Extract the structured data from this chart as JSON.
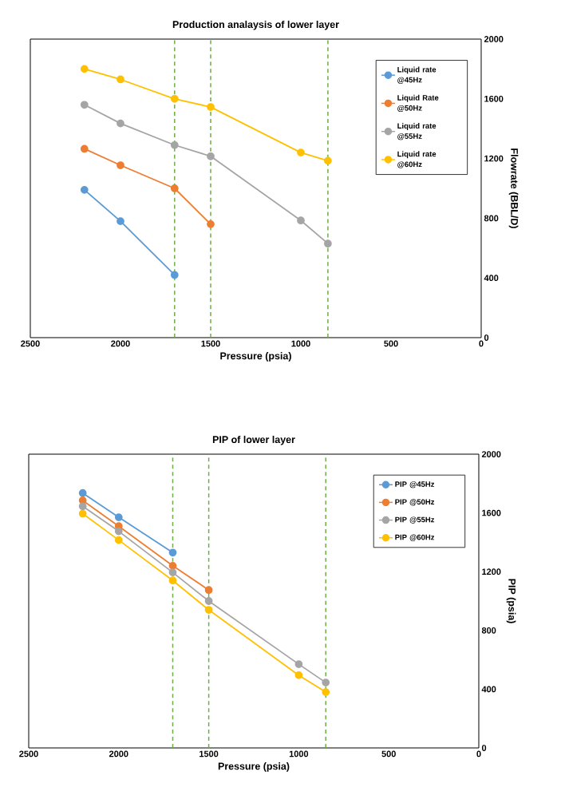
{
  "chart_data": [
    {
      "type": "line",
      "title": "Production analaysis of lower layer",
      "xlabel": "Pressure (psia)",
      "ylabel": "Flowrate (BBL/D)",
      "xlim": [
        2500,
        0
      ],
      "xticks": [
        2500,
        2000,
        1500,
        1000,
        500,
        0
      ],
      "ylim": [
        0,
        2000
      ],
      "yticks": [
        0,
        400,
        800,
        1200,
        1600,
        2000
      ],
      "legend": "top right",
      "marker": "circle",
      "series": [
        {
          "name": "Liquid rate @45Hz",
          "color": "#5b9bd5",
          "x": [
            2200,
            2000,
            1700
          ],
          "values": [
            990,
            780,
            420
          ]
        },
        {
          "name": "Liquid Rate @50Hz",
          "color": "#ed7d31",
          "x": [
            2200,
            2000,
            1700,
            1500
          ],
          "values": [
            1265,
            1155,
            1000,
            760
          ]
        },
        {
          "name": "Liquid rate @55Hz",
          "color": "#a5a5a5",
          "x": [
            2200,
            2000,
            1700,
            1500,
            1000,
            850
          ],
          "values": [
            1560,
            1435,
            1290,
            1215,
            785,
            630
          ]
        },
        {
          "name": "Liquid rate @60Hz",
          "color": "#ffc000",
          "x": [
            2200,
            2000,
            1700,
            1500,
            1000,
            850
          ],
          "values": [
            1800,
            1730,
            1600,
            1545,
            1240,
            1185
          ]
        }
      ],
      "ref_lines": [
        {
          "axis": "x",
          "value": 1700,
          "color": "#70ad47",
          "line_style": "dashed"
        },
        {
          "axis": "x",
          "value": 1500,
          "color": "#70ad47",
          "line_style": "dashed"
        },
        {
          "axis": "x",
          "value": 850,
          "color": "#70ad47",
          "line_style": "dashed"
        }
      ]
    },
    {
      "type": "line",
      "title": "PIP of lower layer",
      "xlabel": "Pressure (psia)",
      "ylabel": "PIP (psia)",
      "xlim": [
        2500,
        0
      ],
      "xticks": [
        2500,
        2000,
        1500,
        1000,
        500,
        0
      ],
      "ylim": [
        0,
        2000
      ],
      "yticks": [
        0,
        400,
        800,
        1200,
        1600,
        2000
      ],
      "legend": "top right",
      "marker": "circle",
      "series": [
        {
          "name": "PIP @45Hz",
          "color": "#5b9bd5",
          "x": [
            2200,
            2000,
            1700
          ],
          "values": [
            1735,
            1570,
            1330
          ]
        },
        {
          "name": "PIP @50Hz",
          "color": "#ed7d31",
          "x": [
            2200,
            2000,
            1700,
            1500
          ],
          "values": [
            1685,
            1510,
            1240,
            1075
          ]
        },
        {
          "name": "PIP @55Hz",
          "color": "#a5a5a5",
          "x": [
            2200,
            2000,
            1700,
            1500,
            1000,
            850
          ],
          "values": [
            1645,
            1475,
            1195,
            1000,
            570,
            445
          ]
        },
        {
          "name": "PIP @60Hz",
          "color": "#ffc000",
          "x": [
            2200,
            2000,
            1700,
            1500,
            1000,
            850
          ],
          "values": [
            1595,
            1415,
            1140,
            940,
            495,
            380
          ]
        }
      ],
      "ref_lines": [
        {
          "axis": "x",
          "value": 1700,
          "color": "#70ad47",
          "line_style": "dashed"
        },
        {
          "axis": "x",
          "value": 1500,
          "color": "#70ad47",
          "line_style": "dashed"
        },
        {
          "axis": "x",
          "value": 850,
          "color": "#70ad47",
          "line_style": "dashed"
        }
      ]
    }
  ]
}
